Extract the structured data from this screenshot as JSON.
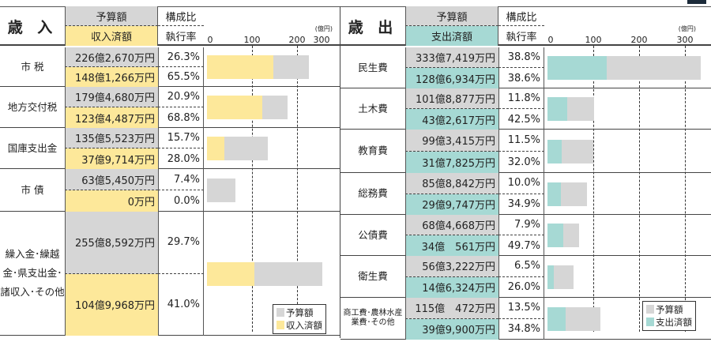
{
  "revenue": {
    "title": "歳 入",
    "budget_header": "予算額",
    "done_header": "収入済額",
    "ratio_header": "構成比",
    "rate_header": "執行率",
    "axis_ticks": [
      "0",
      "100",
      "200",
      "300"
    ],
    "unit": "(億円)",
    "legend": [
      "予算額",
      "収入済額"
    ],
    "colors": {
      "budget": "#d6d6d6",
      "done": "#fde89a"
    },
    "items": [
      {
        "label": "市 税",
        "budget": "226億2,670万円",
        "done": "148億1,266万円",
        "ratio": "26.3%",
        "rate": "65.5%",
        "budget_value": 226.3,
        "done_value": 148.1
      },
      {
        "label": "地方交付税",
        "budget": "179億4,680万円",
        "done": "123億4,487万円",
        "ratio": "20.9%",
        "rate": "68.8%",
        "budget_value": 179.5,
        "done_value": 123.4
      },
      {
        "label": "国庫支出金",
        "budget": "135億5,523万円",
        "done": "37億9,714万円",
        "ratio": "15.7%",
        "rate": "28.0%",
        "budget_value": 135.6,
        "done_value": 38.0
      },
      {
        "label": "市 債",
        "budget": "63億5,450万円",
        "done": "0万円",
        "ratio": "7.4%",
        "rate": "0.0%",
        "budget_value": 63.5,
        "done_value": 0
      },
      {
        "label": "繰入金･繰越金･県支出金･諸収入･その他",
        "budget": "255億8,592万円",
        "done": "104億9,968万円",
        "ratio": "29.7%",
        "rate": "41.0%",
        "budget_value": 255.9,
        "done_value": 105.0
      }
    ]
  },
  "expenditure": {
    "title": "歳 出",
    "budget_header": "予算額",
    "done_header": "支出済額",
    "ratio_header": "構成比",
    "rate_header": "執行率",
    "axis_ticks": [
      "0",
      "100",
      "200",
      "300"
    ],
    "unit": "(億円)",
    "legend": [
      "予算額",
      "支出済額"
    ],
    "colors": {
      "budget": "#d6d6d6",
      "done": "#a6d9d4"
    },
    "items": [
      {
        "label": "民生費",
        "budget": "333億7,419万円",
        "done": "128億6,934万円",
        "ratio": "38.8%",
        "rate": "38.6%",
        "budget_value": 333.7,
        "done_value": 128.7
      },
      {
        "label": "土木費",
        "budget": "101億8,877万円",
        "done": "43億2,617万円",
        "ratio": "11.8%",
        "rate": "42.5%",
        "budget_value": 101.9,
        "done_value": 43.3
      },
      {
        "label": "教育費",
        "budget": "99億3,415万円",
        "done": "31億7,825万円",
        "ratio": "11.5%",
        "rate": "32.0%",
        "budget_value": 99.3,
        "done_value": 31.8
      },
      {
        "label": "総務費",
        "budget": "85億8,842万円",
        "done": "29億9,747万円",
        "ratio": "10.0%",
        "rate": "34.9%",
        "budget_value": 85.9,
        "done_value": 30.0
      },
      {
        "label": "公債費",
        "budget": "68億4,668万円",
        "done": "34億　561万円",
        "ratio": "7.9%",
        "rate": "49.7%",
        "budget_value": 68.5,
        "done_value": 34.1
      },
      {
        "label": "衛生費",
        "budget": "56億3,222万円",
        "done": "14億6,324万円",
        "ratio": "6.5%",
        "rate": "26.0%",
        "budget_value": 56.3,
        "done_value": 14.6
      },
      {
        "label": "商工費･農林水産業費･その他",
        "budget": "115億　472万円",
        "done": "39億9,900万円",
        "ratio": "13.5%",
        "rate": "34.8%",
        "budget_value": 115.0,
        "done_value": 40.0
      }
    ]
  }
}
